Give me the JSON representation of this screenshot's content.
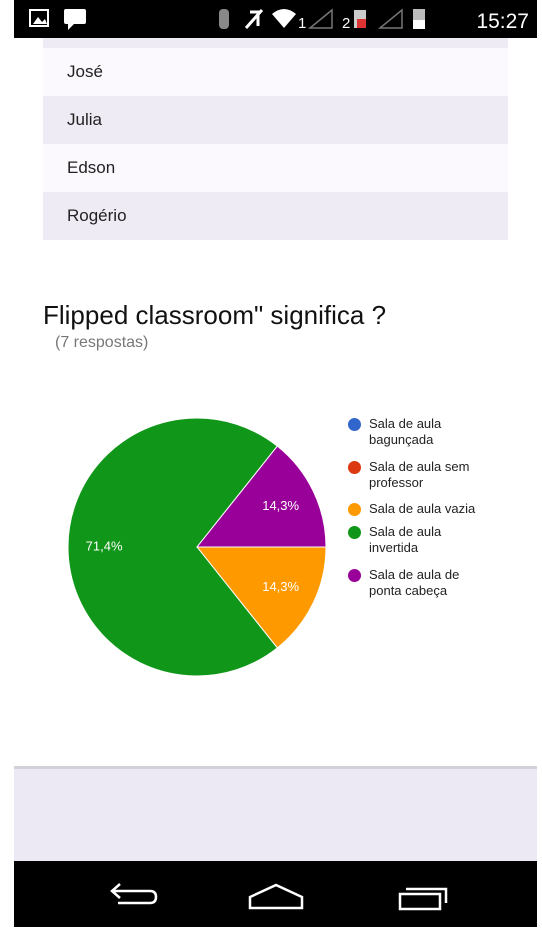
{
  "status_bar": {
    "sim1": "1",
    "sim2": "2",
    "time": "15:27"
  },
  "list": {
    "items": [
      "José",
      "Julia",
      "Edson",
      "Rogério"
    ]
  },
  "chart_data": {
    "type": "pie",
    "title": "Flipped classroom\" significa ?",
    "subtitle": "(7 respostas)",
    "categories": [
      "Sala de aula bagunçada",
      "Sala de aula sem professor",
      "Sala de aula vazia",
      "Sala de aula invertida",
      "Sala de aula de ponta cabeça"
    ],
    "values": [
      0,
      0,
      14.3,
      71.4,
      14.3
    ],
    "value_labels": [
      null,
      null,
      "14,3%",
      "71,4%",
      "14,3%"
    ],
    "colors": [
      "#3366cc",
      "#dc3912",
      "#ff9900",
      "#109618",
      "#990099"
    ],
    "legend": "right"
  }
}
